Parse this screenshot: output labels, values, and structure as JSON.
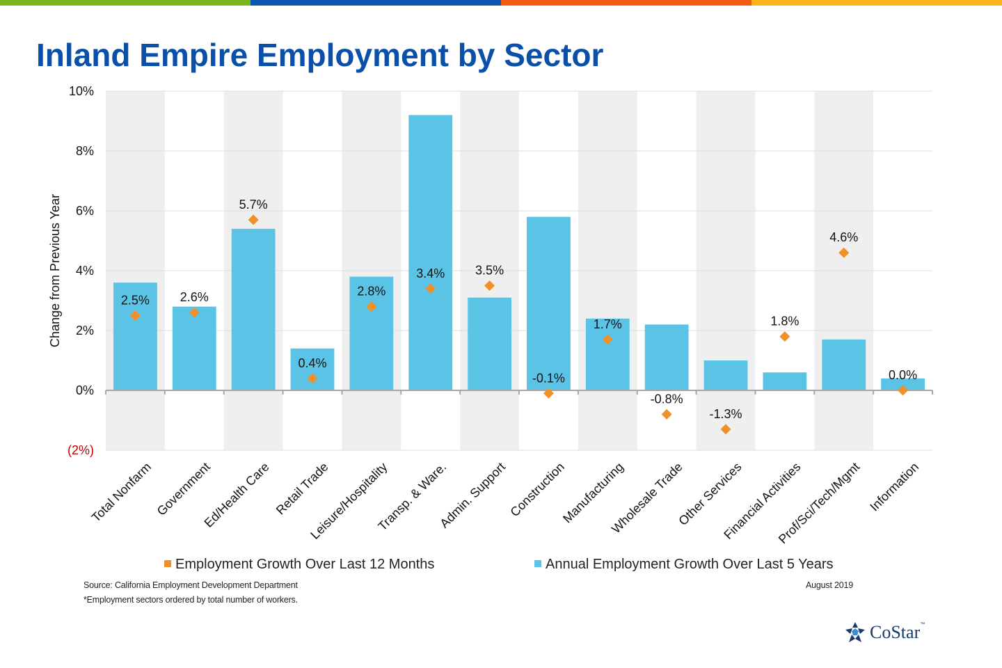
{
  "header": {
    "title": "Inland Empire Employment by Sector",
    "stripe_colors": [
      "#7ab51d",
      "#0b56b3",
      "#f25a12",
      "#fbb519"
    ]
  },
  "chart_data": {
    "type": "bar",
    "ylabel": "Change from Previous Year",
    "ylim": [
      -2,
      10
    ],
    "yticks": [
      {
        "value": 10,
        "label": "10%"
      },
      {
        "value": 8,
        "label": "8%"
      },
      {
        "value": 6,
        "label": "6%"
      },
      {
        "value": 4,
        "label": "4%"
      },
      {
        "value": 2,
        "label": "2%"
      },
      {
        "value": 0,
        "label": "0%"
      },
      {
        "value": -2,
        "label": "(2%)"
      }
    ],
    "negative_tick_color": "#c00000",
    "categories": [
      "Total Nonfarm",
      "Government",
      "Ed/Health Care",
      "Retail Trade",
      "Leisure/Hospitality",
      "Transp. & Ware.",
      "Admin. Support",
      "Construction",
      "Manufacturing",
      "Wholesale Trade",
      "Other Services",
      "Financial Activities",
      "Prof/Sci/Tech/Mgmt",
      "Information"
    ],
    "series": [
      {
        "name": "Annual Employment Growth Over Last 5 Years",
        "mark": "bar",
        "color": "#5bc4e6",
        "values": [
          3.6,
          2.8,
          5.4,
          1.4,
          3.8,
          9.2,
          3.1,
          5.8,
          2.4,
          2.2,
          1.0,
          0.6,
          1.7,
          0.4
        ]
      },
      {
        "name": "Employment Growth Over Last 12 Months",
        "mark": "diamond",
        "color": "#f0902a",
        "values": [
          2.5,
          2.6,
          5.7,
          0.4,
          2.8,
          3.4,
          3.5,
          -0.1,
          1.7,
          -0.8,
          -1.3,
          1.8,
          4.6,
          0.0
        ],
        "labels": [
          "2.5%",
          "2.6%",
          "5.7%",
          "0.4%",
          "2.8%",
          "3.4%",
          "3.5%",
          "-0.1%",
          "1.7%",
          "-0.8%",
          "-1.3%",
          "1.8%",
          "4.6%",
          "0.0%"
        ]
      }
    ],
    "grid": true,
    "legend_position": "bottom"
  },
  "footer": {
    "source": "Source: California Employment Development Department",
    "footnote": "*Employment sectors ordered by total number of workers.",
    "date": "August 2019",
    "logo_text": "CoStar",
    "logo_tm": "™"
  }
}
